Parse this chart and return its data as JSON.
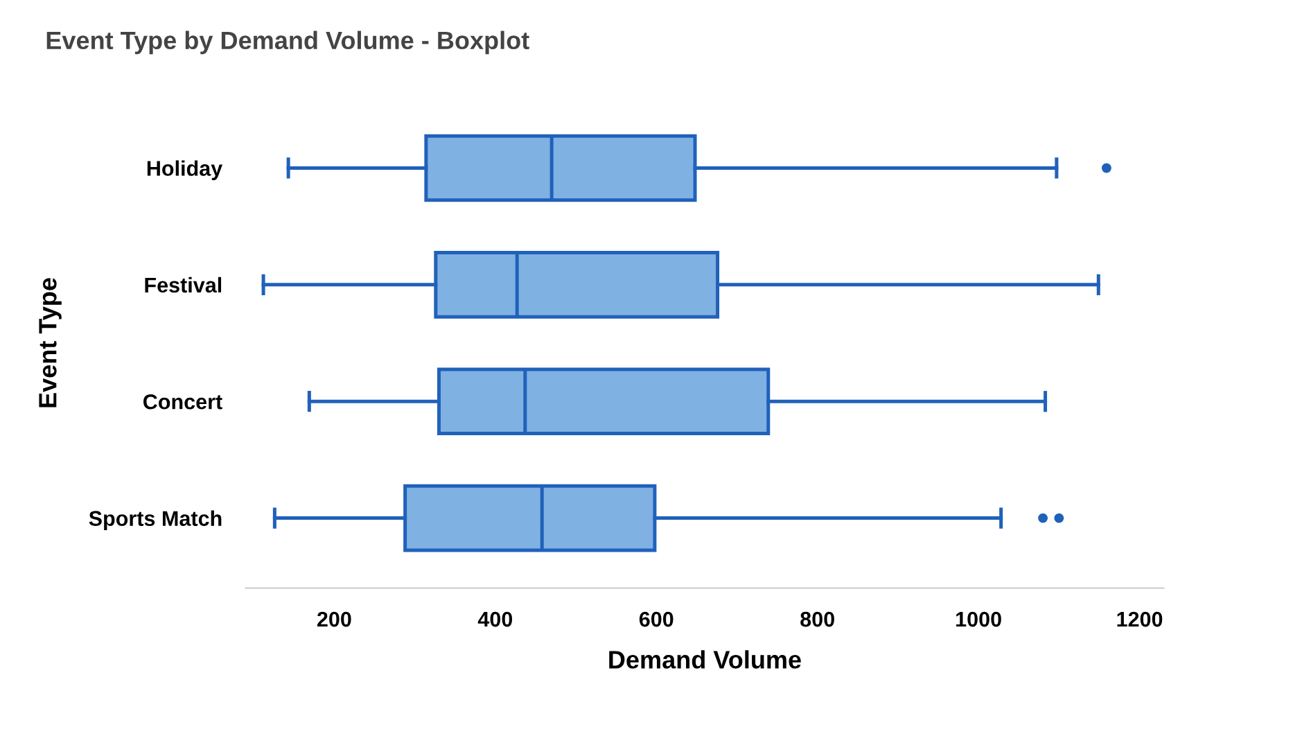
{
  "chart_data": {
    "type": "box",
    "title": "Event Type by Demand Volume - Boxplot",
    "xlabel": "Demand Volume",
    "ylabel": "Event Type",
    "orientation": "horizontal",
    "categories": [
      "Holiday",
      "Festival",
      "Concert",
      "Sports Match"
    ],
    "boxes": [
      {
        "low": 143,
        "q1": 314,
        "median": 470,
        "q3": 648,
        "high": 1097,
        "outliers": [
          1159
        ]
      },
      {
        "low": 112,
        "q1": 326,
        "median": 427,
        "q3": 676,
        "high": 1149
      },
      {
        "low": 169,
        "q1": 330,
        "median": 437,
        "q3": 739,
        "high": 1083
      },
      {
        "low": 126,
        "q1": 288,
        "median": 458,
        "q3": 598,
        "high": 1028,
        "outliers": [
          1080,
          1100
        ]
      }
    ],
    "color": "#7fb1e3",
    "xlim": [
      90,
      1230
    ],
    "xticks": [
      200,
      400,
      600,
      800,
      1000,
      1200
    ],
    "grid": false,
    "legend": false
  }
}
